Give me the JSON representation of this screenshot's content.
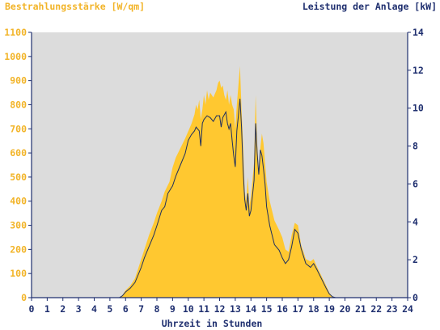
{
  "chart_data": {
    "type": "area",
    "title_left": "Bestrahlungsstärke [W/qm]",
    "title_right": "Leistung der Anlage [kW]",
    "xlabel": "Uhrzeit in Stunden",
    "x_ticks": [
      "0",
      "1",
      "2",
      "3",
      "4",
      "5",
      "6",
      "7",
      "8",
      "9",
      "10",
      "11",
      "12",
      "13",
      "14",
      "15",
      "16",
      "17",
      "18",
      "19",
      "20",
      "21",
      "22",
      "23",
      "24"
    ],
    "y_left": {
      "range": [
        0,
        1100
      ],
      "ticks": [
        "0",
        "100",
        "200",
        "300",
        "400",
        "500",
        "600",
        "700",
        "800",
        "900",
        "1000",
        "1100"
      ]
    },
    "y_right": {
      "range": [
        0,
        14
      ],
      "ticks": [
        "0",
        "2",
        "4",
        "6",
        "8",
        "10",
        "12",
        "14"
      ]
    },
    "colors": {
      "irradiance_fill": "#FFC830",
      "power_line": "#1F2F5F",
      "plot_background": "#DCDCDC",
      "left_axis_text": "#F2B428",
      "right_axis_text": "#1F2F6F"
    },
    "series": [
      {
        "axis": "left",
        "style": "area",
        "points": [
          [
            0,
            0
          ],
          [
            5.6,
            0
          ],
          [
            5.8,
            10
          ],
          [
            6,
            30
          ],
          [
            6.3,
            50
          ],
          [
            6.6,
            80
          ],
          [
            6.8,
            120
          ],
          [
            7,
            160
          ],
          [
            7.2,
            200
          ],
          [
            7.5,
            260
          ],
          [
            7.8,
            310
          ],
          [
            8,
            350
          ],
          [
            8.3,
            400
          ],
          [
            8.5,
            440
          ],
          [
            8.8,
            480
          ],
          [
            9,
            540
          ],
          [
            9.2,
            580
          ],
          [
            9.5,
            620
          ],
          [
            9.8,
            660
          ],
          [
            10,
            690
          ],
          [
            10.2,
            720
          ],
          [
            10.4,
            760
          ],
          [
            10.5,
            800
          ],
          [
            10.6,
            780
          ],
          [
            10.7,
            820
          ],
          [
            10.8,
            740
          ],
          [
            10.9,
            780
          ],
          [
            11,
            840
          ],
          [
            11.1,
            800
          ],
          [
            11.2,
            860
          ],
          [
            11.3,
            820
          ],
          [
            11.4,
            850
          ],
          [
            11.6,
            830
          ],
          [
            11.8,
            860
          ],
          [
            11.9,
            890
          ],
          [
            12,
            900
          ],
          [
            12.1,
            870
          ],
          [
            12.2,
            880
          ],
          [
            12.3,
            840
          ],
          [
            12.4,
            820
          ],
          [
            12.5,
            860
          ],
          [
            12.6,
            800
          ],
          [
            12.7,
            840
          ],
          [
            12.8,
            800
          ],
          [
            12.9,
            780
          ],
          [
            13,
            700
          ],
          [
            13.1,
            800
          ],
          [
            13.2,
            880
          ],
          [
            13.3,
            960
          ],
          [
            13.4,
            780
          ],
          [
            13.5,
            640
          ],
          [
            13.6,
            440
          ],
          [
            13.7,
            400
          ],
          [
            13.8,
            500
          ],
          [
            13.9,
            380
          ],
          [
            14,
            420
          ],
          [
            14.2,
            560
          ],
          [
            14.3,
            840
          ],
          [
            14.4,
            640
          ],
          [
            14.5,
            520
          ],
          [
            14.6,
            620
          ],
          [
            14.7,
            680
          ],
          [
            14.8,
            640
          ],
          [
            14.9,
            560
          ],
          [
            15,
            480
          ],
          [
            15.2,
            400
          ],
          [
            15.5,
            320
          ],
          [
            15.8,
            280
          ],
          [
            16,
            250
          ],
          [
            16.2,
            200
          ],
          [
            16.4,
            190
          ],
          [
            16.6,
            260
          ],
          [
            16.8,
            310
          ],
          [
            17,
            300
          ],
          [
            17.2,
            220
          ],
          [
            17.5,
            160
          ],
          [
            17.8,
            150
          ],
          [
            18,
            160
          ],
          [
            18.2,
            130
          ],
          [
            18.5,
            90
          ],
          [
            18.8,
            50
          ],
          [
            19,
            20
          ],
          [
            19.2,
            5
          ],
          [
            19.4,
            0
          ],
          [
            24,
            0
          ]
        ]
      },
      {
        "axis": "right",
        "style": "line",
        "points": [
          [
            0,
            0
          ],
          [
            5.6,
            0
          ],
          [
            5.8,
            0.1
          ],
          [
            6,
            0.3
          ],
          [
            6.3,
            0.5
          ],
          [
            6.6,
            0.8
          ],
          [
            6.8,
            1.2
          ],
          [
            7,
            1.6
          ],
          [
            7.2,
            2.1
          ],
          [
            7.5,
            2.7
          ],
          [
            7.8,
            3.3
          ],
          [
            8,
            3.8
          ],
          [
            8.3,
            4.6
          ],
          [
            8.5,
            4.8
          ],
          [
            8.7,
            5.5
          ],
          [
            9,
            5.9
          ],
          [
            9.2,
            6.4
          ],
          [
            9.5,
            7.0
          ],
          [
            9.8,
            7.6
          ],
          [
            10,
            8.3
          ],
          [
            10.2,
            8.6
          ],
          [
            10.4,
            8.8
          ],
          [
            10.5,
            9.0
          ],
          [
            10.7,
            8.8
          ],
          [
            10.8,
            8.0
          ],
          [
            10.9,
            9.2
          ],
          [
            11,
            9.4
          ],
          [
            11.2,
            9.6
          ],
          [
            11.4,
            9.5
          ],
          [
            11.6,
            9.3
          ],
          [
            11.8,
            9.6
          ],
          [
            12,
            9.6
          ],
          [
            12.1,
            9.0
          ],
          [
            12.2,
            9.5
          ],
          [
            12.4,
            9.8
          ],
          [
            12.5,
            9.2
          ],
          [
            12.6,
            8.9
          ],
          [
            12.7,
            9.2
          ],
          [
            12.8,
            8.3
          ],
          [
            12.9,
            7.5
          ],
          [
            13,
            6.9
          ],
          [
            13.1,
            8.8
          ],
          [
            13.2,
            9.6
          ],
          [
            13.3,
            10.5
          ],
          [
            13.4,
            9.0
          ],
          [
            13.5,
            6.8
          ],
          [
            13.6,
            5.2
          ],
          [
            13.7,
            4.6
          ],
          [
            13.8,
            5.5
          ],
          [
            13.9,
            4.3
          ],
          [
            14,
            4.6
          ],
          [
            14.1,
            5.4
          ],
          [
            14.2,
            6.2
          ],
          [
            14.3,
            9.2
          ],
          [
            14.4,
            7.6
          ],
          [
            14.5,
            6.5
          ],
          [
            14.6,
            7.8
          ],
          [
            14.7,
            7.5
          ],
          [
            14.8,
            6.8
          ],
          [
            14.9,
            6.0
          ],
          [
            15,
            4.8
          ],
          [
            15.2,
            3.8
          ],
          [
            15.5,
            2.8
          ],
          [
            15.8,
            2.5
          ],
          [
            16,
            2.1
          ],
          [
            16.2,
            1.8
          ],
          [
            16.4,
            2.0
          ],
          [
            16.6,
            2.7
          ],
          [
            16.8,
            3.6
          ],
          [
            17,
            3.4
          ],
          [
            17.2,
            2.6
          ],
          [
            17.5,
            1.8
          ],
          [
            17.8,
            1.6
          ],
          [
            18,
            1.8
          ],
          [
            18.2,
            1.5
          ],
          [
            18.5,
            1.0
          ],
          [
            18.8,
            0.5
          ],
          [
            19,
            0.2
          ],
          [
            19.2,
            0.05
          ],
          [
            19.4,
            0
          ],
          [
            24,
            0
          ]
        ]
      }
    ]
  }
}
